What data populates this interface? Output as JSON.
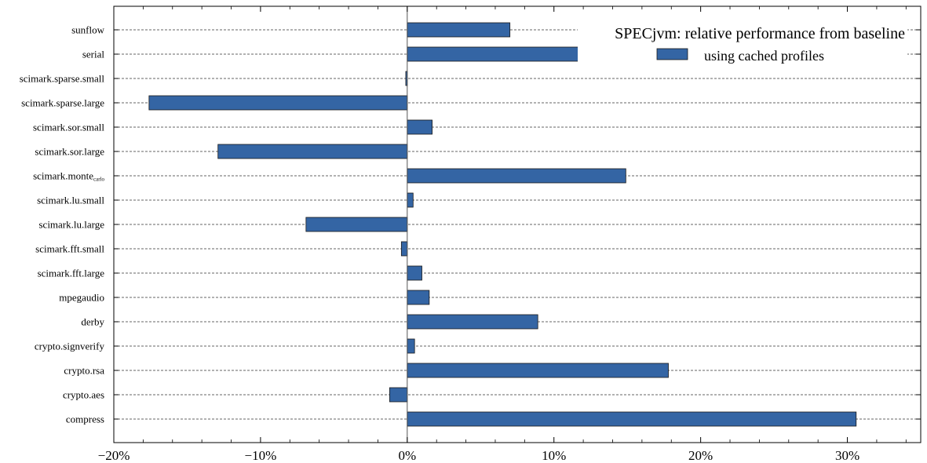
{
  "chart_data": {
    "type": "bar",
    "orientation": "horizontal",
    "legend": {
      "title": "SPECjvm: relative performance from baseline",
      "placement": "top-right"
    },
    "series": [
      {
        "name": "using cached profiles",
        "color": "#3465a4",
        "values": [
          30.6,
          -1.2,
          17.8,
          0.5,
          8.9,
          1.5,
          1.0,
          -0.4,
          -6.9,
          0.4,
          14.9,
          -12.9,
          1.7,
          -17.6,
          -0.1,
          12.2,
          7.0
        ]
      }
    ],
    "categories": [
      {
        "main": "compress",
        "sub": ""
      },
      {
        "main": "crypto.aes",
        "sub": ""
      },
      {
        "main": "crypto.rsa",
        "sub": ""
      },
      {
        "main": "crypto.signverify",
        "sub": ""
      },
      {
        "main": "derby",
        "sub": ""
      },
      {
        "main": "mpegaudio",
        "sub": ""
      },
      {
        "main": "scimark.fft.large",
        "sub": ""
      },
      {
        "main": "scimark.fft.small",
        "sub": ""
      },
      {
        "main": "scimark.lu.large",
        "sub": ""
      },
      {
        "main": "scimark.lu.small",
        "sub": ""
      },
      {
        "main": "scimark.monte",
        "sub": "carlo"
      },
      {
        "main": "scimark.sor.large",
        "sub": ""
      },
      {
        "main": "scimark.sor.small",
        "sub": ""
      },
      {
        "main": "scimark.sparse.large",
        "sub": ""
      },
      {
        "main": "scimark.sparse.small",
        "sub": ""
      },
      {
        "main": "serial",
        "sub": ""
      },
      {
        "main": "sunflow",
        "sub": ""
      }
    ],
    "xlim": [
      -20,
      35
    ],
    "xticks": [
      -20,
      -10,
      0,
      10,
      20,
      30
    ],
    "xtick_labels": [
      "−20%",
      "−10%",
      "0%",
      "10%",
      "20%",
      "30%"
    ],
    "grid": "horizontal dashed",
    "bar_edge_color": "#1a1a1a"
  }
}
